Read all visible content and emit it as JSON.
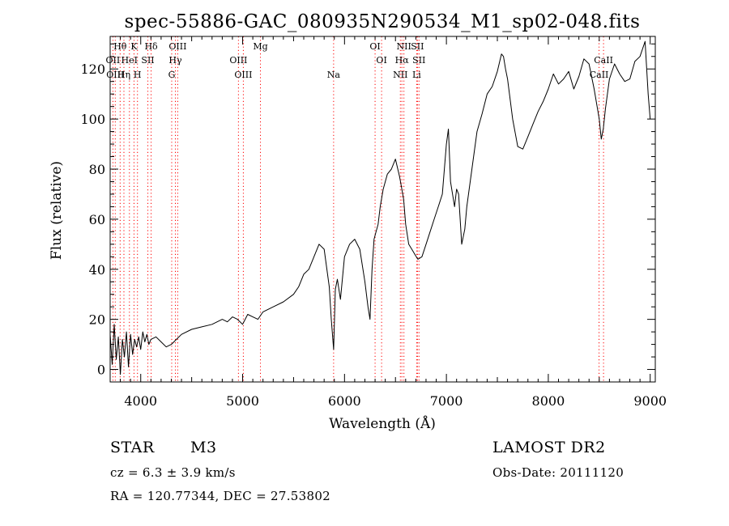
{
  "chart_data": {
    "type": "line",
    "title": "spec-55886-GAC_080935N290534_M1_sp02-048.fits",
    "xlabel": "Wavelength (Å)",
    "ylabel": "Flux (relative)",
    "xlim": [
      3700,
      9050
    ],
    "ylim": [
      -5,
      133
    ],
    "xticks": [
      4000,
      5000,
      6000,
      7000,
      8000,
      9000
    ],
    "yticks": [
      0,
      20,
      40,
      60,
      80,
      100,
      120
    ],
    "grid": false,
    "line_color": "#000000",
    "marker_color": "#ff0000",
    "series": [
      {
        "x": [
          3700,
          3720,
          3740,
          3760,
          3780,
          3800,
          3820,
          3840,
          3860,
          3880,
          3900,
          3920,
          3940,
          3960,
          3980,
          4000,
          4020,
          4040,
          4060,
          4080,
          4100,
          4150,
          4200,
          4250,
          4300,
          4350,
          4400,
          4500,
          4600,
          4700,
          4800,
          4850,
          4900,
          4950,
          5000,
          5050,
          5100,
          5150,
          5200,
          5300,
          5400,
          5500,
          5550,
          5600,
          5650,
          5700,
          5750,
          5800,
          5850,
          5870,
          5893,
          5910,
          5930,
          5960,
          6000,
          6050,
          6100,
          6150,
          6200,
          6230,
          6250,
          6270,
          6290,
          6310,
          6330,
          6350,
          6380,
          6420,
          6460,
          6500,
          6540,
          6563,
          6580,
          6600,
          6630,
          6660,
          6690,
          6720,
          6760,
          6800,
          6840,
          6880,
          6920,
          6960,
          7000,
          7020,
          7040,
          7060,
          7080,
          7100,
          7120,
          7150,
          7180,
          7200,
          7250,
          7300,
          7350,
          7400,
          7450,
          7500,
          7540,
          7560,
          7580,
          7600,
          7650,
          7700,
          7750,
          7800,
          7850,
          7900,
          7950,
          8000,
          8050,
          8100,
          8150,
          8200,
          8250,
          8300,
          8350,
          8400,
          8450,
          8500,
          8520,
          8540,
          8560,
          8600,
          8650,
          8700,
          8750,
          8800,
          8850,
          8900,
          8950,
          8980,
          9000
        ],
        "y": [
          14,
          2,
          18,
          4,
          13,
          -2,
          12,
          5,
          15,
          1,
          14,
          6,
          12,
          9,
          13,
          8,
          15,
          11,
          14,
          10,
          12,
          13,
          11,
          9,
          10,
          12,
          14,
          16,
          17,
          18,
          20,
          19,
          21,
          20,
          18,
          22,
          21,
          20,
          23,
          25,
          27,
          30,
          33,
          38,
          40,
          45,
          50,
          48,
          33,
          20,
          8,
          32,
          36,
          28,
          45,
          50,
          52,
          48,
          35,
          25,
          20,
          40,
          52,
          55,
          58,
          65,
          72,
          78,
          80,
          84,
          77,
          72,
          68,
          58,
          50,
          48,
          46,
          44,
          45,
          50,
          55,
          60,
          65,
          70,
          90,
          96,
          75,
          70,
          65,
          72,
          70,
          50,
          56,
          65,
          80,
          95,
          102,
          110,
          113,
          119,
          126,
          125,
          120,
          116,
          100,
          89,
          88,
          93,
          98,
          103,
          107,
          112,
          118,
          114,
          116,
          119,
          112,
          117,
          124,
          122,
          112,
          100,
          92,
          96,
          104,
          116,
          122,
          118,
          115,
          116,
          123,
          125,
          131,
          110,
          100
        ]
      }
    ],
    "lines": [
      {
        "label": "Hθ",
        "x": 3798,
        "row": 1,
        "color": "#ff0000"
      },
      {
        "label": "K",
        "x": 3934,
        "row": 1,
        "color": "#ff0000"
      },
      {
        "label": "Hδ",
        "x": 4102,
        "row": 1,
        "color": "#ff0000"
      },
      {
        "label": "OIII",
        "x": 4363,
        "row": 1,
        "color": "#ff0000"
      },
      {
        "label": "Mg",
        "x": 5175,
        "row": 0,
        "color": "#ff0000"
      },
      {
        "label": "OI",
        "x": 6300,
        "row": 1,
        "color": "#ff0000"
      },
      {
        "label": "NII",
        "x": 6583,
        "row": 1,
        "color": "#ff0000"
      },
      {
        "label": "SII",
        "x": 6716,
        "row": 1,
        "color": "#ff0000"
      },
      {
        "label": "OII",
        "x": 3727,
        "row": 2,
        "color": "#ff0000"
      },
      {
        "label": "HeI",
        "x": 3889,
        "row": 2,
        "color": "#ff0000"
      },
      {
        "label": "SII",
        "x": 4070,
        "row": 2,
        "color": "#ff0000"
      },
      {
        "label": "Hγ",
        "x": 4340,
        "row": 2,
        "color": "#ff0000"
      },
      {
        "label": "OIII",
        "x": 4959,
        "row": 2,
        "color": "#ff0000"
      },
      {
        "label": "OI",
        "x": 6364,
        "row": 2,
        "color": "#ff0000"
      },
      {
        "label": "Hα",
        "x": 6563,
        "row": 2,
        "color": "#ff0000"
      },
      {
        "label": "SII",
        "x": 6731,
        "row": 2,
        "color": "#ff0000"
      },
      {
        "label": "CaII",
        "x": 8542,
        "row": 2,
        "color": "#ff0000"
      },
      {
        "label": "OIII",
        "x": 3750,
        "row": 3,
        "color": "#ff0000"
      },
      {
        "label": "Hη",
        "x": 3835,
        "row": 3,
        "color": "#ff0000"
      },
      {
        "label": "H",
        "x": 3968,
        "row": 3,
        "color": "#ff0000"
      },
      {
        "label": "G",
        "x": 4304,
        "row": 3,
        "color": "#ff0000"
      },
      {
        "label": "OIII",
        "x": 5007,
        "row": 3,
        "color": "#ff0000"
      },
      {
        "label": "Na",
        "x": 5893,
        "row": 3,
        "color": "#ff0000"
      },
      {
        "label": "NII",
        "x": 6548,
        "row": 3,
        "color": "#ff0000"
      },
      {
        "label": "Li",
        "x": 6708,
        "row": 3,
        "color": "#ff0000"
      },
      {
        "label": "CaII",
        "x": 8498,
        "row": 3,
        "color": "#ff0000"
      }
    ]
  },
  "info": {
    "object_class": "STAR",
    "subclass": "M3",
    "survey": "LAMOST DR2",
    "cz": "cz = 6.3 ± 3.9 km/s",
    "obs_date": "Obs-Date: 20111120",
    "coords": "RA = 120.77344, DEC =  27.53802"
  }
}
